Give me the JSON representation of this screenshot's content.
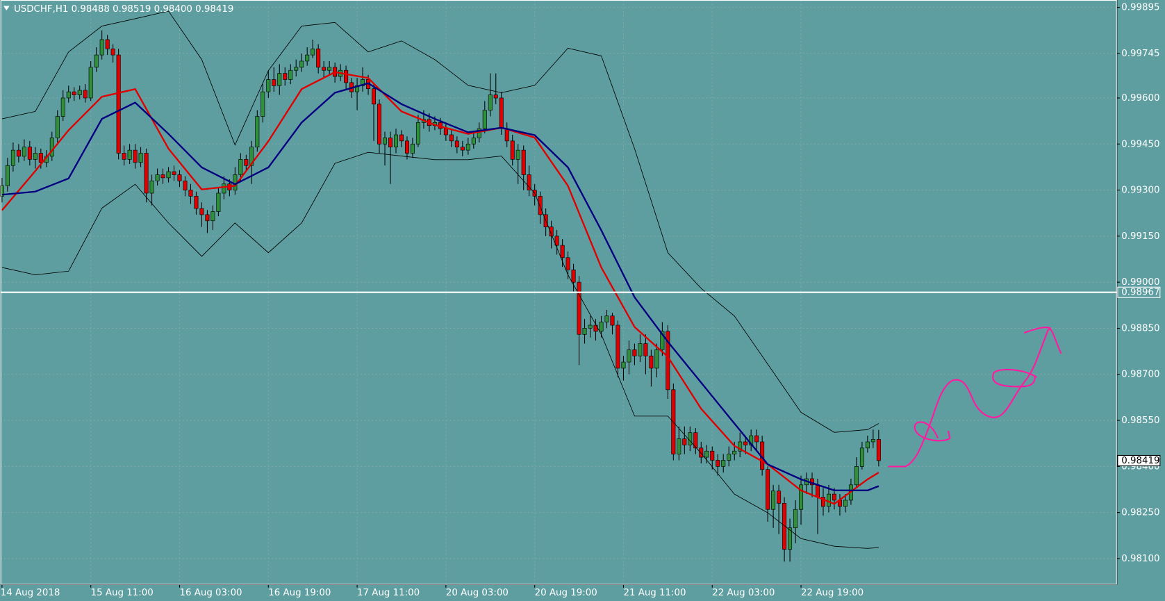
{
  "chart_data": {
    "type": "candlestick",
    "title": "USDCHF,H1  0.98488 0.98519 0.98400 0.98419",
    "up_color": "#2f8f3a",
    "down_color": "#e00000",
    "grid": true,
    "ylim": [
      0.98015,
      0.99919
    ],
    "yticks": [
      {
        "value": 0.99895,
        "label": "0.99895"
      },
      {
        "value": 0.99745,
        "label": "0.99745"
      },
      {
        "value": 0.996,
        "label": "0.99600"
      },
      {
        "value": 0.9945,
        "label": "0.99450"
      },
      {
        "value": 0.993,
        "label": "0.99300"
      },
      {
        "value": 0.9915,
        "label": "0.99150"
      },
      {
        "value": 0.99,
        "label": "0.99000"
      },
      {
        "value": 0.9885,
        "label": "0.98850"
      },
      {
        "value": 0.987,
        "label": "0.98700"
      },
      {
        "value": 0.9855,
        "label": "0.98550"
      },
      {
        "value": 0.984,
        "label": "0.98400"
      },
      {
        "value": 0.9825,
        "label": "0.98250"
      },
      {
        "value": 0.981,
        "label": "0.98100"
      }
    ],
    "xticks": [
      {
        "value": 0,
        "label": "14 Aug 2018"
      },
      {
        "value": 16,
        "label": "15 Aug 11:00"
      },
      {
        "value": 32,
        "label": "16 Aug 03:00"
      },
      {
        "value": 48,
        "label": "16 Aug 19:00"
      },
      {
        "value": 64,
        "label": "17 Aug 11:00"
      },
      {
        "value": 80,
        "label": "20 Aug 03:00"
      },
      {
        "value": 96,
        "label": "20 Aug 19:00"
      },
      {
        "value": 112,
        "label": "21 Aug 11:00"
      },
      {
        "value": 128,
        "label": "22 Aug 03:00"
      },
      {
        "value": 144,
        "label": "22 Aug 19:00"
      }
    ],
    "hline": {
      "value": 0.98967,
      "label": "0.98967",
      "color": "#ffffff"
    },
    "last_price": {
      "value": 0.98419,
      "label": "0.98419"
    },
    "candles": [
      [
        0.9928,
        0.9934,
        0.9926,
        0.99314
      ],
      [
        0.99314,
        0.99405,
        0.99295,
        0.9938
      ],
      [
        0.9938,
        0.99455,
        0.9936,
        0.9943
      ],
      [
        0.9943,
        0.9945,
        0.9939,
        0.9941
      ],
      [
        0.9941,
        0.99465,
        0.99395,
        0.9944
      ],
      [
        0.9944,
        0.9946,
        0.9938,
        0.994
      ],
      [
        0.994,
        0.9944,
        0.9937,
        0.9942
      ],
      [
        0.9942,
        0.99435,
        0.9937,
        0.9939
      ],
      [
        0.9939,
        0.9943,
        0.99375,
        0.9941
      ],
      [
        0.9941,
        0.9949,
        0.99395,
        0.9947
      ],
      [
        0.9947,
        0.9956,
        0.99455,
        0.9954
      ],
      [
        0.9954,
        0.99625,
        0.99525,
        0.996
      ],
      [
        0.996,
        0.9964,
        0.99585,
        0.9962
      ],
      [
        0.9962,
        0.99635,
        0.9959,
        0.9961
      ],
      [
        0.9961,
        0.9964,
        0.99595,
        0.99625
      ],
      [
        0.99625,
        0.99645,
        0.99585,
        0.996
      ],
      [
        0.996,
        0.9972,
        0.9959,
        0.997
      ],
      [
        0.997,
        0.99765,
        0.99685,
        0.9974
      ],
      [
        0.9974,
        0.9982,
        0.99725,
        0.9979
      ],
      [
        0.9979,
        0.99805,
        0.9974,
        0.9976
      ],
      [
        0.9976,
        0.99775,
        0.99715,
        0.9974
      ],
      [
        0.9974,
        0.9976,
        0.994,
        0.9942
      ],
      [
        0.9942,
        0.99445,
        0.9938,
        0.994
      ],
      [
        0.994,
        0.9945,
        0.99385,
        0.9943
      ],
      [
        0.9943,
        0.9945,
        0.9937,
        0.9939
      ],
      [
        0.9939,
        0.9944,
        0.99375,
        0.9942
      ],
      [
        0.9942,
        0.99435,
        0.9926,
        0.9929
      ],
      [
        0.9929,
        0.9935,
        0.9925,
        0.9933
      ],
      [
        0.9933,
        0.9937,
        0.99315,
        0.9935
      ],
      [
        0.9935,
        0.9937,
        0.9932,
        0.9934
      ],
      [
        0.9934,
        0.99375,
        0.99325,
        0.9936
      ],
      [
        0.9936,
        0.9938,
        0.9933,
        0.9935
      ],
      [
        0.9935,
        0.99365,
        0.9931,
        0.9933
      ],
      [
        0.9933,
        0.99345,
        0.9928,
        0.993
      ],
      [
        0.993,
        0.9932,
        0.99255,
        0.9928
      ],
      [
        0.9928,
        0.99295,
        0.9922,
        0.9924
      ],
      [
        0.9924,
        0.9926,
        0.9918,
        0.9922
      ],
      [
        0.9922,
        0.99235,
        0.9916,
        0.992
      ],
      [
        0.992,
        0.9925,
        0.9917,
        0.9923
      ],
      [
        0.9923,
        0.9931,
        0.99215,
        0.9929
      ],
      [
        0.9929,
        0.99345,
        0.9927,
        0.9932
      ],
      [
        0.9932,
        0.99335,
        0.9928,
        0.993
      ],
      [
        0.993,
        0.99375,
        0.99285,
        0.9935
      ],
      [
        0.9935,
        0.9942,
        0.9933,
        0.994
      ],
      [
        0.994,
        0.99415,
        0.9936,
        0.9938
      ],
      [
        0.9938,
        0.9946,
        0.9932,
        0.9944
      ],
      [
        0.9944,
        0.9956,
        0.99425,
        0.9954
      ],
      [
        0.9954,
        0.99645,
        0.9952,
        0.9962
      ],
      [
        0.9962,
        0.9969,
        0.996,
        0.9966
      ],
      [
        0.9966,
        0.997,
        0.9962,
        0.9964
      ],
      [
        0.9964,
        0.9971,
        0.9961,
        0.9968
      ],
      [
        0.9968,
        0.997,
        0.9964,
        0.9966
      ],
      [
        0.9966,
        0.9971,
        0.99645,
        0.9969
      ],
      [
        0.9969,
        0.99725,
        0.9967,
        0.997
      ],
      [
        0.997,
        0.99745,
        0.99685,
        0.9972
      ],
      [
        0.9972,
        0.99765,
        0.99705,
        0.9974
      ],
      [
        0.9974,
        0.9979,
        0.9973,
        0.9976
      ],
      [
        0.9976,
        0.99775,
        0.9968,
        0.997
      ],
      [
        0.997,
        0.9972,
        0.99665,
        0.9969
      ],
      [
        0.9969,
        0.9972,
        0.99675,
        0.997
      ],
      [
        0.997,
        0.99715,
        0.9965,
        0.9967
      ],
      [
        0.9967,
        0.9971,
        0.99655,
        0.9969
      ],
      [
        0.9969,
        0.99705,
        0.9963,
        0.9965
      ],
      [
        0.9965,
        0.99665,
        0.996,
        0.9962
      ],
      [
        0.9962,
        0.99665,
        0.9956,
        0.9964
      ],
      [
        0.9964,
        0.997,
        0.9962,
        0.9966
      ],
      [
        0.9966,
        0.99675,
        0.9961,
        0.9963
      ],
      [
        0.9963,
        0.99645,
        0.9946,
        0.9958
      ],
      [
        0.9958,
        0.99595,
        0.9942,
        0.9945
      ],
      [
        0.9945,
        0.9949,
        0.9938,
        0.9947
      ],
      [
        0.9947,
        0.9949,
        0.9932,
        0.9944
      ],
      [
        0.9944,
        0.995,
        0.9942,
        0.9948
      ],
      [
        0.9948,
        0.99495,
        0.9944,
        0.9946
      ],
      [
        0.9946,
        0.99475,
        0.994,
        0.9942
      ],
      [
        0.9942,
        0.9947,
        0.99405,
        0.9945
      ],
      [
        0.9945,
        0.99545,
        0.9944,
        0.9952
      ],
      [
        0.9952,
        0.9956,
        0.995,
        0.9953
      ],
      [
        0.9953,
        0.9955,
        0.9949,
        0.9951
      ],
      [
        0.9951,
        0.9954,
        0.99495,
        0.9952
      ],
      [
        0.9952,
        0.99535,
        0.9948,
        0.995
      ],
      [
        0.995,
        0.9952,
        0.9946,
        0.9948
      ],
      [
        0.9948,
        0.99495,
        0.9944,
        0.9946
      ],
      [
        0.9946,
        0.99475,
        0.9942,
        0.9944
      ],
      [
        0.9944,
        0.9946,
        0.9941,
        0.9943
      ],
      [
        0.9943,
        0.9947,
        0.99415,
        0.9945
      ],
      [
        0.9945,
        0.9949,
        0.99435,
        0.9947
      ],
      [
        0.9947,
        0.9952,
        0.99455,
        0.995
      ],
      [
        0.995,
        0.9959,
        0.99485,
        0.9956
      ],
      [
        0.9956,
        0.9968,
        0.9954,
        0.9961
      ],
      [
        0.9961,
        0.9968,
        0.9958,
        0.996
      ],
      [
        0.996,
        0.9962,
        0.9948,
        0.995
      ],
      [
        0.995,
        0.9952,
        0.9944,
        0.9946
      ],
      [
        0.9946,
        0.9948,
        0.9938,
        0.994
      ],
      [
        0.994,
        0.9945,
        0.9932,
        0.9943
      ],
      [
        0.9943,
        0.99445,
        0.993,
        0.9935
      ],
      [
        0.9935,
        0.9938,
        0.9928,
        0.993
      ],
      [
        0.993,
        0.9932,
        0.9925,
        0.9928
      ],
      [
        0.9928,
        0.99295,
        0.9919,
        0.9922
      ],
      [
        0.9922,
        0.9924,
        0.9915,
        0.9918
      ],
      [
        0.9918,
        0.992,
        0.9911,
        0.9915
      ],
      [
        0.9915,
        0.9917,
        0.9909,
        0.9912
      ],
      [
        0.9912,
        0.9914,
        0.9905,
        0.9908
      ],
      [
        0.9908,
        0.991,
        0.9901,
        0.9904
      ],
      [
        0.9904,
        0.9906,
        0.9897,
        0.99
      ],
      [
        0.99,
        0.9902,
        0.9873,
        0.9883
      ],
      [
        0.9883,
        0.9888,
        0.988,
        0.9885
      ],
      [
        0.9885,
        0.9889,
        0.9882,
        0.9886
      ],
      [
        0.9886,
        0.9888,
        0.9881,
        0.9884
      ],
      [
        0.9884,
        0.9889,
        0.9882,
        0.9887
      ],
      [
        0.9887,
        0.9891,
        0.9885,
        0.9889
      ],
      [
        0.9889,
        0.989,
        0.9883,
        0.9886
      ],
      [
        0.9886,
        0.98875,
        0.9869,
        0.9872
      ],
      [
        0.9872,
        0.9876,
        0.9868,
        0.9874
      ],
      [
        0.9874,
        0.9881,
        0.987,
        0.9878
      ],
      [
        0.9878,
        0.988,
        0.9873,
        0.9876
      ],
      [
        0.9876,
        0.9883,
        0.9874,
        0.988
      ],
      [
        0.988,
        0.9883,
        0.987,
        0.9876
      ],
      [
        0.9876,
        0.9878,
        0.9866,
        0.9872
      ],
      [
        0.9872,
        0.988,
        0.9869,
        0.9878
      ],
      [
        0.9878,
        0.9887,
        0.9876,
        0.9884
      ],
      [
        0.9884,
        0.9886,
        0.9862,
        0.9865
      ],
      [
        0.9865,
        0.9867,
        0.9842,
        0.9844
      ],
      [
        0.9844,
        0.9853,
        0.9842,
        0.9849
      ],
      [
        0.9849,
        0.9853,
        0.9844,
        0.9847
      ],
      [
        0.9847,
        0.9853,
        0.9845,
        0.9851
      ],
      [
        0.9851,
        0.98525,
        0.9844,
        0.9846
      ],
      [
        0.9846,
        0.9848,
        0.9841,
        0.9843
      ],
      [
        0.9843,
        0.9847,
        0.9841,
        0.9845
      ],
      [
        0.9845,
        0.98465,
        0.9839,
        0.9842
      ],
      [
        0.9842,
        0.9844,
        0.9837,
        0.984
      ],
      [
        0.984,
        0.9844,
        0.9838,
        0.9842
      ],
      [
        0.9842,
        0.98465,
        0.984,
        0.9844
      ],
      [
        0.9844,
        0.9848,
        0.9842,
        0.9845
      ],
      [
        0.9845,
        0.9851,
        0.9843,
        0.9848
      ],
      [
        0.9848,
        0.985,
        0.9844,
        0.9847
      ],
      [
        0.9847,
        0.9852,
        0.9845,
        0.985
      ],
      [
        0.985,
        0.9852,
        0.9845,
        0.9848
      ],
      [
        0.9848,
        0.985,
        0.9837,
        0.9839
      ],
      [
        0.9839,
        0.984,
        0.9822,
        0.9826
      ],
      [
        0.9826,
        0.9834,
        0.982,
        0.9832
      ],
      [
        0.9832,
        0.9834,
        0.9818,
        0.9828
      ],
      [
        0.9828,
        0.983,
        0.9809,
        0.9813
      ],
      [
        0.9813,
        0.9823,
        0.9809,
        0.982
      ],
      [
        0.982,
        0.9829,
        0.9815,
        0.9826
      ],
      [
        0.9826,
        0.9837,
        0.9821,
        0.9834
      ],
      [
        0.9834,
        0.9838,
        0.9831,
        0.9836
      ],
      [
        0.9836,
        0.9838,
        0.983,
        0.9834
      ],
      [
        0.9834,
        0.9836,
        0.9818,
        0.983
      ],
      [
        0.983,
        0.9833,
        0.9824,
        0.9827
      ],
      [
        0.9827,
        0.9834,
        0.9825,
        0.9831
      ],
      [
        0.9831,
        0.9833,
        0.9826,
        0.9829
      ],
      [
        0.9829,
        0.9831,
        0.9824,
        0.9827
      ],
      [
        0.9827,
        0.9831,
        0.9825,
        0.9829
      ],
      [
        0.9829,
        0.9836,
        0.98275,
        0.9834
      ],
      [
        0.9834,
        0.9843,
        0.9833,
        0.984
      ],
      [
        0.984,
        0.9848,
        0.9839,
        0.9846
      ],
      [
        0.9846,
        0.985,
        0.98445,
        0.9848
      ],
      [
        0.9848,
        0.9852,
        0.9846,
        0.98488
      ],
      [
        0.98488,
        0.98519,
        0.984,
        0.98419
      ]
    ],
    "series": [
      {
        "color": "#e00000",
        "x": [
          0,
          6,
          12,
          18,
          24,
          30,
          36,
          42,
          48,
          54,
          60,
          66,
          72,
          78,
          84,
          90,
          96,
          102,
          108,
          114,
          120,
          126,
          132,
          138,
          144,
          150,
          156,
          158
        ],
        "values": [
          0.99234,
          0.99362,
          0.99495,
          0.99604,
          0.99629,
          0.99435,
          0.99302,
          0.99314,
          0.99459,
          0.99629,
          0.99684,
          0.99665,
          0.99556,
          0.99512,
          0.99483,
          0.99503,
          0.99471,
          0.99314,
          0.99048,
          0.98854,
          0.98757,
          0.98588,
          0.98467,
          0.98407,
          0.98322,
          0.98278,
          0.98358,
          0.9838
        ]
      },
      {
        "color": "#000080",
        "x": [
          0,
          6,
          12,
          18,
          24,
          30,
          36,
          42,
          48,
          54,
          60,
          66,
          72,
          78,
          84,
          90,
          96,
          102,
          108,
          114,
          120,
          126,
          132,
          138,
          144,
          150,
          156,
          158
        ],
        "values": [
          0.99285,
          0.99295,
          0.99338,
          0.99532,
          0.99585,
          0.99483,
          0.99374,
          0.99319,
          0.99374,
          0.9952,
          0.99617,
          0.99648,
          0.9958,
          0.99532,
          0.99488,
          0.99503,
          0.99479,
          0.99374,
          0.99169,
          0.98951,
          0.98806,
          0.98673,
          0.9854,
          0.98407,
          0.98358,
          0.98322,
          0.98322,
          0.98336
        ]
      },
      {
        "color": "#000000",
        "x": [
          0,
          6,
          12,
          18,
          24,
          30,
          36,
          42,
          48,
          54,
          60,
          66,
          72,
          78,
          84,
          90,
          96,
          102,
          108,
          114,
          120,
          126,
          132,
          138,
          144,
          150,
          156,
          158
        ],
        "values": [
          0.99532,
          0.99556,
          0.9975,
          0.99834,
          0.99858,
          0.99883,
          0.99725,
          0.99447,
          0.99689,
          0.99834,
          0.99846,
          0.9975,
          0.99786,
          0.99725,
          0.99641,
          0.99617,
          0.99641,
          0.99762,
          0.99737,
          0.99435,
          0.99096,
          0.9898,
          0.9889,
          0.98733,
          0.98576,
          0.98511,
          0.9852,
          0.9854
        ]
      },
      {
        "color": "#000000",
        "x": [
          0,
          6,
          12,
          18,
          24,
          30,
          36,
          42,
          48,
          54,
          60,
          66,
          72,
          78,
          84,
          90,
          96,
          102,
          108,
          114,
          120,
          126,
          132,
          138,
          144,
          150,
          156,
          158
        ],
        "values": [
          0.99048,
          0.99024,
          0.99036,
          0.99241,
          0.99319,
          0.99193,
          0.99084,
          0.99193,
          0.99096,
          0.99193,
          0.99387,
          0.99423,
          0.99411,
          0.99399,
          0.99399,
          0.99411,
          0.9929,
          0.99024,
          0.9883,
          0.98564,
          0.98564,
          0.98443,
          0.9831,
          0.98249,
          0.98165,
          0.9814,
          0.98133,
          0.98136
        ]
      }
    ]
  }
}
